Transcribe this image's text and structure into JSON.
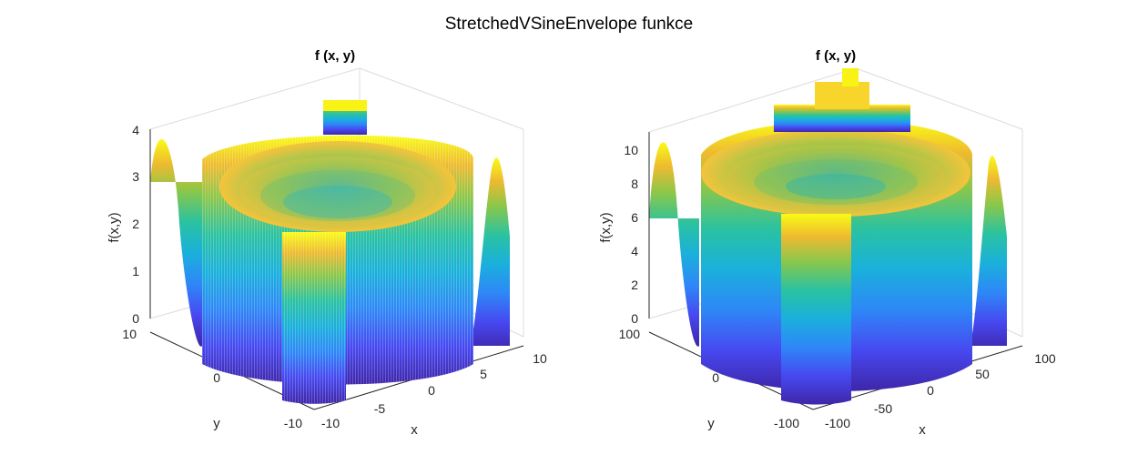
{
  "figure": {
    "title": "StretchedVSineEnvelope funkce"
  },
  "chart_data": [
    {
      "type": "surface",
      "title": "f (x, y)",
      "xlabel": "x",
      "ylabel": "y",
      "zlabel": "f(x,y)",
      "xlim": [
        -10,
        10
      ],
      "ylim": [
        -10,
        10
      ],
      "zlim": [
        0,
        4
      ],
      "xticks": [
        "-10",
        "-5",
        "0",
        "5",
        "10"
      ],
      "yticks": [
        "-10",
        "0",
        "10"
      ],
      "zticks": [
        "0",
        "1",
        "2",
        "3",
        "4"
      ],
      "grid": true,
      "colormap": "parula",
      "function": "StretchedVSineEnvelope"
    },
    {
      "type": "surface",
      "title": "f (x, y)",
      "xlabel": "x",
      "ylabel": "y",
      "zlabel": "f(x,y)",
      "xlim": [
        -100,
        100
      ],
      "ylim": [
        -100,
        100
      ],
      "zlim": [
        0,
        11
      ],
      "xticks": [
        "-100",
        "-50",
        "0",
        "50",
        "100"
      ],
      "yticks": [
        "-100",
        "0",
        "100"
      ],
      "zticks": [
        "0",
        "2",
        "4",
        "6",
        "8",
        "10"
      ],
      "grid": true,
      "colormap": "parula",
      "function": "StretchedVSineEnvelope"
    }
  ]
}
